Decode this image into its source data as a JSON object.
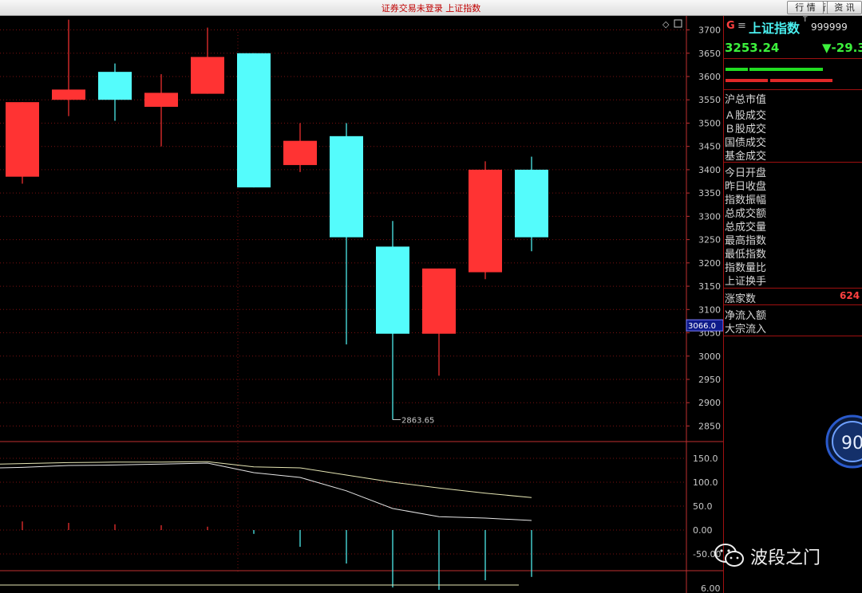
{
  "window": {
    "title": "证券交易未登录 上证指数",
    "buttons": [
      {
        "label": "行 情"
      },
      {
        "label": "资 讯"
      }
    ]
  },
  "quote_panel": {
    "market_tag": "G",
    "menu_glyph": "≡",
    "name": "上证指数",
    "superscript": "T",
    "code": "999999",
    "price": "3253.24",
    "change": "▼-29.3",
    "rows": [
      {
        "label": "沪总市值"
      },
      {
        "label": "Ａ股成交"
      },
      {
        "label": "Ｂ股成交"
      },
      {
        "label": "国债成交"
      },
      {
        "label": "基金成交"
      },
      {
        "label": "今日开盘"
      },
      {
        "label": "昨日收盘"
      },
      {
        "label": "指数振幅"
      },
      {
        "label": "总成交额"
      },
      {
        "label": "总成交量"
      },
      {
        "label": "最高指数"
      },
      {
        "label": "最低指数"
      },
      {
        "label": "指数量比"
      },
      {
        "label": "上证换手"
      },
      {
        "label": "涨家数",
        "value": "624"
      },
      {
        "label": "净流入额"
      },
      {
        "label": "大宗流入"
      }
    ]
  },
  "colors": {
    "up": "#ff3333",
    "down": "#54fcfc",
    "grid": "#7a1010",
    "axis_text": "#c8c8c8",
    "fast_line": "#e6e6e6",
    "slow_line": "#e6e6b4"
  },
  "chart_data": {
    "type": "candlestick",
    "price_axis": {
      "ticks": [
        3700,
        3650,
        3600,
        3550,
        3500,
        3450,
        3400,
        3350,
        3300,
        3250,
        3200,
        3150,
        3100,
        3050,
        3000,
        2950,
        2900,
        2850
      ],
      "range": [
        2820,
        3730
      ],
      "cursor_value": "3066.0"
    },
    "low_annotation": "2863.65",
    "candles": [
      {
        "open": 3385,
        "close": 3545,
        "high": 3545,
        "low": 3370
      },
      {
        "open": 3550,
        "close": 3572,
        "high": 3722,
        "low": 3515
      },
      {
        "open": 3610,
        "close": 3550,
        "high": 3628,
        "low": 3505
      },
      {
        "open": 3535,
        "close": 3565,
        "high": 3605,
        "low": 3450
      },
      {
        "open": 3563,
        "close": 3642,
        "high": 3705,
        "low": 3563
      },
      {
        "open": 3650,
        "close": 3362,
        "high": 3650,
        "low": 3362
      },
      {
        "open": 3410,
        "close": 3462,
        "high": 3500,
        "low": 3395
      },
      {
        "open": 3472,
        "close": 3255,
        "high": 3500,
        "low": 3025
      },
      {
        "open": 3235,
        "close": 3048,
        "high": 3290,
        "low": 2863.65
      },
      {
        "open": 3048,
        "close": 3188,
        "high": 3188,
        "low": 2958
      },
      {
        "open": 3180,
        "close": 3400,
        "high": 3418,
        "low": 3165
      },
      {
        "open": 3400,
        "close": 3255,
        "high": 3428,
        "low": 3225
      }
    ],
    "indicator": {
      "ticks": [
        150.0,
        100.0,
        50.0,
        0.0,
        -50.0
      ],
      "tick_labels": [
        "150.0",
        "100.0",
        "50.0",
        "0.00",
        "-50.00"
      ],
      "range": [
        -75,
        175
      ],
      "fast": [
        130,
        131,
        135,
        136,
        138,
        140,
        120,
        110,
        82,
        45,
        28,
        25,
        20
      ],
      "slow": [
        138,
        139,
        141,
        142,
        142,
        143,
        132,
        130,
        115,
        100,
        88,
        77,
        68
      ],
      "bars": [
        18,
        15,
        12,
        10,
        7,
        -8,
        -35,
        -70,
        -120,
        -125,
        -105,
        -98
      ]
    },
    "lower_tick": "6.00"
  },
  "badge": {
    "value": "90"
  },
  "watermark": {
    "text": "波段之门"
  }
}
